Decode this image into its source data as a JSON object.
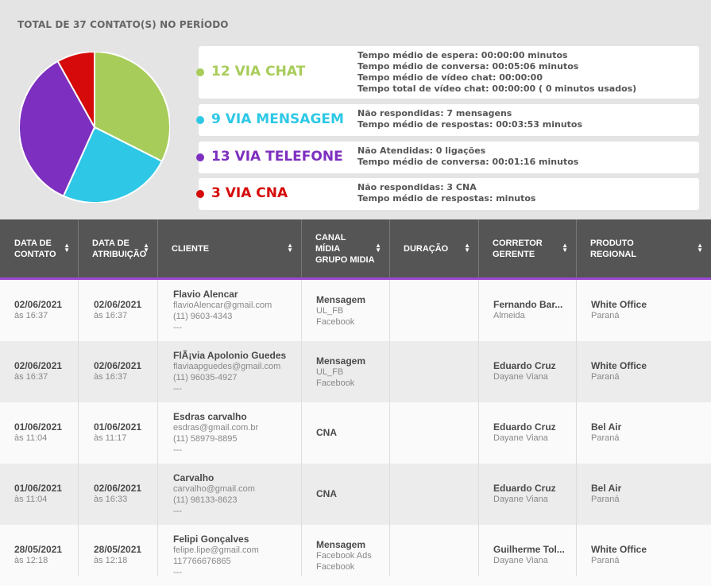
{
  "summary": {
    "title": "TOTAL DE 37 CONTATO(S) NO PERÍODO",
    "colors": {
      "chat": "#a8cc5a",
      "mensagem": "#2ec8e6",
      "telefone": "#7d2fbf",
      "cna": "#d60a0a"
    },
    "channels": [
      {
        "label": "12 VIA CHAT",
        "count": 12,
        "details": [
          "Tempo médio de espera: 00:00:00 minutos",
          "Tempo médio de conversa: 00:05:06 minutos",
          "Tempo médio de vídeo chat: 00:00:00",
          "Tempo total de vídeo chat: 00:00:00 ( 0 minutos usados)"
        ]
      },
      {
        "label": "9 VIA MENSAGEM",
        "count": 9,
        "details": [
          "Não respondidas: 7 mensagens",
          "Tempo médio de respostas: 00:03:53 minutos"
        ]
      },
      {
        "label": "13 VIA TELEFONE",
        "count": 13,
        "details": [
          "Não Atendidas: 0 ligações",
          "Tempo médio de conversa: 00:01:16 minutos"
        ]
      },
      {
        "label": "3 VIA CNA",
        "count": 3,
        "details": [
          "Não respondidas: 3 CNA",
          "Tempo médio de respostas: minutos"
        ]
      }
    ]
  },
  "table": {
    "headers": [
      [
        "DATA DE",
        "CONTATO"
      ],
      [
        "DATA DE",
        "ATRIBUIÇÃO"
      ],
      [
        "CLIENTE"
      ],
      [
        "CANAL",
        "MÍDIA",
        "GRUPO MIDIA"
      ],
      [
        "DURAÇÃO"
      ],
      [
        "CORRETOR",
        "GERENTE"
      ],
      [
        "PRODUTO",
        "REGIONAL"
      ]
    ],
    "rows": [
      {
        "contato_data": "02/06/2021",
        "contato_hora": "às 16:37",
        "atrib_data": "02/06/2021",
        "atrib_hora": "às 16:37",
        "cliente_nome": "Flavio Alencar",
        "cliente_email": "flavioAlencar@gmail.com",
        "cliente_tel": "(11) 9603-4343",
        "cliente_extra": "---",
        "canal": "Mensagem",
        "midia": "UL_FB",
        "grupo": "Facebook",
        "duracao": "",
        "corretor": "Fernando Bar...",
        "gerente": "Almeida",
        "produto": "White Office",
        "regional": "Paraná"
      },
      {
        "contato_data": "02/06/2021",
        "contato_hora": "às 16:37",
        "atrib_data": "02/06/2021",
        "atrib_hora": "às 16:37",
        "cliente_nome": "FlÃ¡via Apolonio Guedes",
        "cliente_email": "flaviaapguedes@gmail.com",
        "cliente_tel": "(11) 96035-4927",
        "cliente_extra": "---",
        "canal": "Mensagem",
        "midia": "UL_FB",
        "grupo": "Facebook",
        "duracao": "",
        "corretor": "Eduardo Cruz",
        "gerente": "Dayane Viana",
        "produto": "White Office",
        "regional": "Paraná"
      },
      {
        "contato_data": "01/06/2021",
        "contato_hora": "às 11:04",
        "atrib_data": "01/06/2021",
        "atrib_hora": "às 11:17",
        "cliente_nome": "Esdras carvalho",
        "cliente_email": "esdras@gmail.com.br",
        "cliente_tel": "(11) 58979-8895",
        "cliente_extra": "---",
        "canal": "CNA",
        "midia": "",
        "grupo": "",
        "duracao": "",
        "corretor": "Eduardo Cruz",
        "gerente": "Dayane Viana",
        "produto": "Bel Air",
        "regional": "Paraná"
      },
      {
        "contato_data": "01/06/2021",
        "contato_hora": "às 11:04",
        "atrib_data": "02/06/2021",
        "atrib_hora": "às 16:33",
        "cliente_nome": "Carvalho",
        "cliente_email": "carvalho@gmail.com",
        "cliente_tel": "(11) 98133-8623",
        "cliente_extra": "---",
        "canal": "CNA",
        "midia": "",
        "grupo": "",
        "duracao": "",
        "corretor": "Eduardo Cruz",
        "gerente": "Dayane Viana",
        "produto": "Bel Air",
        "regional": "Paraná"
      },
      {
        "contato_data": "28/05/2021",
        "contato_hora": "às 12:18",
        "atrib_data": "28/05/2021",
        "atrib_hora": "às 12:18",
        "cliente_nome": "Felipi Gonçalves",
        "cliente_email": "felipe.lipe@gmail.com",
        "cliente_tel": "117766676865",
        "cliente_extra": "---",
        "canal": "Mensagem",
        "midia": "Facebook Ads",
        "grupo": "Facebook",
        "duracao": "",
        "corretor": "Guilherme Tol...",
        "gerente": "Dayane Viana",
        "produto": "White Office",
        "regional": "Paraná"
      }
    ]
  }
}
